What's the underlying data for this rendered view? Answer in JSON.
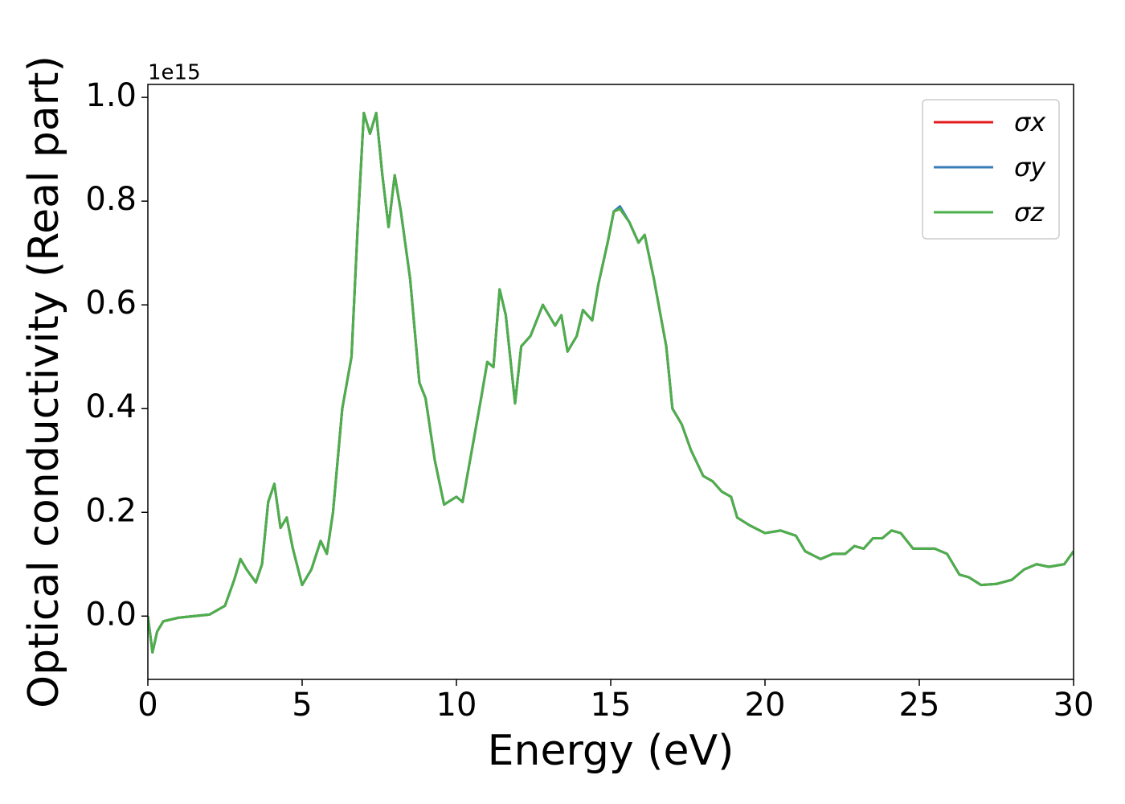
{
  "chart_data": {
    "type": "line",
    "y_offset_label": "1e15",
    "xlabel": "Energy (eV)",
    "ylabel": "Optical conductivity (Real part)",
    "xlim": [
      0,
      30
    ],
    "ylim": [
      -0.122,
      1.025
    ],
    "xticks": [
      0,
      5,
      10,
      15,
      20,
      25,
      30
    ],
    "yticks": [
      {
        "value": 0,
        "label": "0.0"
      },
      0.2,
      0.4,
      0.6,
      0.8,
      {
        "value": 1,
        "label": "1.0"
      }
    ],
    "legend": "upper right",
    "x": [
      0,
      0.15,
      0.3,
      0.5,
      1,
      2,
      2.5,
      2.8,
      3.0,
      3.2,
      3.5,
      3.7,
      3.9,
      4.1,
      4.3,
      4.5,
      4.7,
      5.0,
      5.3,
      5.6,
      5.8,
      6.0,
      6.3,
      6.6,
      6.8,
      7.0,
      7.2,
      7.4,
      7.6,
      7.8,
      8.0,
      8.2,
      8.5,
      8.8,
      9.0,
      9.3,
      9.6,
      10.0,
      10.2,
      10.5,
      10.8,
      11.0,
      11.2,
      11.4,
      11.6,
      11.9,
      12.1,
      12.4,
      12.8,
      13.0,
      13.2,
      13.4,
      13.6,
      13.9,
      14.1,
      14.4,
      14.6,
      14.9,
      15.1,
      15.3,
      15.6,
      15.9,
      16.1,
      16.4,
      16.8,
      17.0,
      17.3,
      17.6,
      18.0,
      18.3,
      18.6,
      18.9,
      19.1,
      19.5,
      20,
      20.5,
      21,
      21.3,
      21.8,
      22.2,
      22.6,
      22.9,
      23.2,
      23.5,
      23.8,
      24.1,
      24.4,
      24.8,
      25.5,
      25.9,
      26.3,
      26.6,
      27.0,
      27.5,
      28,
      28.4,
      28.8,
      29.2,
      29.7,
      30
    ],
    "series": [
      {
        "name": "σx",
        "color": "#e41a1c",
        "values": [
          0,
          -0.07,
          -0.03,
          -0.01,
          -0.003,
          0.003,
          0.02,
          0.07,
          0.11,
          0.09,
          0.065,
          0.1,
          0.22,
          0.255,
          0.17,
          0.19,
          0.13,
          0.06,
          0.09,
          0.145,
          0.12,
          0.2,
          0.4,
          0.5,
          0.75,
          0.97,
          0.93,
          0.97,
          0.85,
          0.75,
          0.85,
          0.78,
          0.65,
          0.45,
          0.42,
          0.3,
          0.215,
          0.23,
          0.22,
          0.32,
          0.42,
          0.49,
          0.48,
          0.63,
          0.58,
          0.41,
          0.52,
          0.54,
          0.6,
          0.58,
          0.56,
          0.58,
          0.51,
          0.54,
          0.59,
          0.57,
          0.64,
          0.72,
          0.78,
          0.785,
          0.76,
          0.72,
          0.735,
          0.65,
          0.52,
          0.4,
          0.37,
          0.32,
          0.27,
          0.26,
          0.24,
          0.23,
          0.19,
          0.175,
          0.16,
          0.165,
          0.155,
          0.125,
          0.11,
          0.12,
          0.12,
          0.135,
          0.13,
          0.15,
          0.15,
          0.165,
          0.16,
          0.13,
          0.13,
          0.12,
          0.08,
          0.075,
          0.06,
          0.062,
          0.07,
          0.09,
          0.1,
          0.095,
          0.1,
          0.125
        ]
      },
      {
        "name": "σy",
        "color": "#377eb8",
        "values": [
          0,
          -0.07,
          -0.03,
          -0.01,
          -0.003,
          0.003,
          0.02,
          0.07,
          0.11,
          0.09,
          0.065,
          0.1,
          0.22,
          0.255,
          0.17,
          0.19,
          0.13,
          0.06,
          0.09,
          0.145,
          0.12,
          0.2,
          0.4,
          0.5,
          0.75,
          0.97,
          0.93,
          0.97,
          0.85,
          0.75,
          0.85,
          0.78,
          0.65,
          0.45,
          0.42,
          0.3,
          0.215,
          0.23,
          0.22,
          0.32,
          0.42,
          0.49,
          0.48,
          0.63,
          0.58,
          0.41,
          0.52,
          0.54,
          0.6,
          0.58,
          0.56,
          0.58,
          0.51,
          0.54,
          0.59,
          0.57,
          0.64,
          0.72,
          0.78,
          0.79,
          0.76,
          0.72,
          0.735,
          0.65,
          0.52,
          0.4,
          0.37,
          0.32,
          0.27,
          0.26,
          0.24,
          0.23,
          0.19,
          0.175,
          0.16,
          0.165,
          0.155,
          0.125,
          0.11,
          0.12,
          0.12,
          0.135,
          0.13,
          0.15,
          0.15,
          0.165,
          0.16,
          0.13,
          0.13,
          0.12,
          0.08,
          0.075,
          0.06,
          0.062,
          0.07,
          0.09,
          0.1,
          0.095,
          0.1,
          0.125
        ]
      },
      {
        "name": "σz",
        "color": "#4daf4a",
        "values": [
          0,
          -0.07,
          -0.03,
          -0.01,
          -0.003,
          0.003,
          0.02,
          0.07,
          0.11,
          0.09,
          0.065,
          0.1,
          0.22,
          0.255,
          0.17,
          0.19,
          0.13,
          0.06,
          0.09,
          0.145,
          0.12,
          0.2,
          0.4,
          0.5,
          0.75,
          0.97,
          0.93,
          0.97,
          0.85,
          0.75,
          0.85,
          0.78,
          0.65,
          0.45,
          0.42,
          0.3,
          0.215,
          0.23,
          0.22,
          0.32,
          0.42,
          0.49,
          0.48,
          0.63,
          0.58,
          0.41,
          0.52,
          0.54,
          0.6,
          0.58,
          0.56,
          0.58,
          0.51,
          0.54,
          0.59,
          0.57,
          0.64,
          0.72,
          0.78,
          0.785,
          0.76,
          0.72,
          0.735,
          0.65,
          0.52,
          0.4,
          0.37,
          0.32,
          0.27,
          0.26,
          0.24,
          0.23,
          0.19,
          0.175,
          0.16,
          0.165,
          0.155,
          0.125,
          0.11,
          0.12,
          0.12,
          0.135,
          0.13,
          0.15,
          0.15,
          0.165,
          0.16,
          0.13,
          0.13,
          0.12,
          0.08,
          0.075,
          0.06,
          0.062,
          0.07,
          0.09,
          0.1,
          0.095,
          0.1,
          0.125
        ]
      }
    ]
  }
}
